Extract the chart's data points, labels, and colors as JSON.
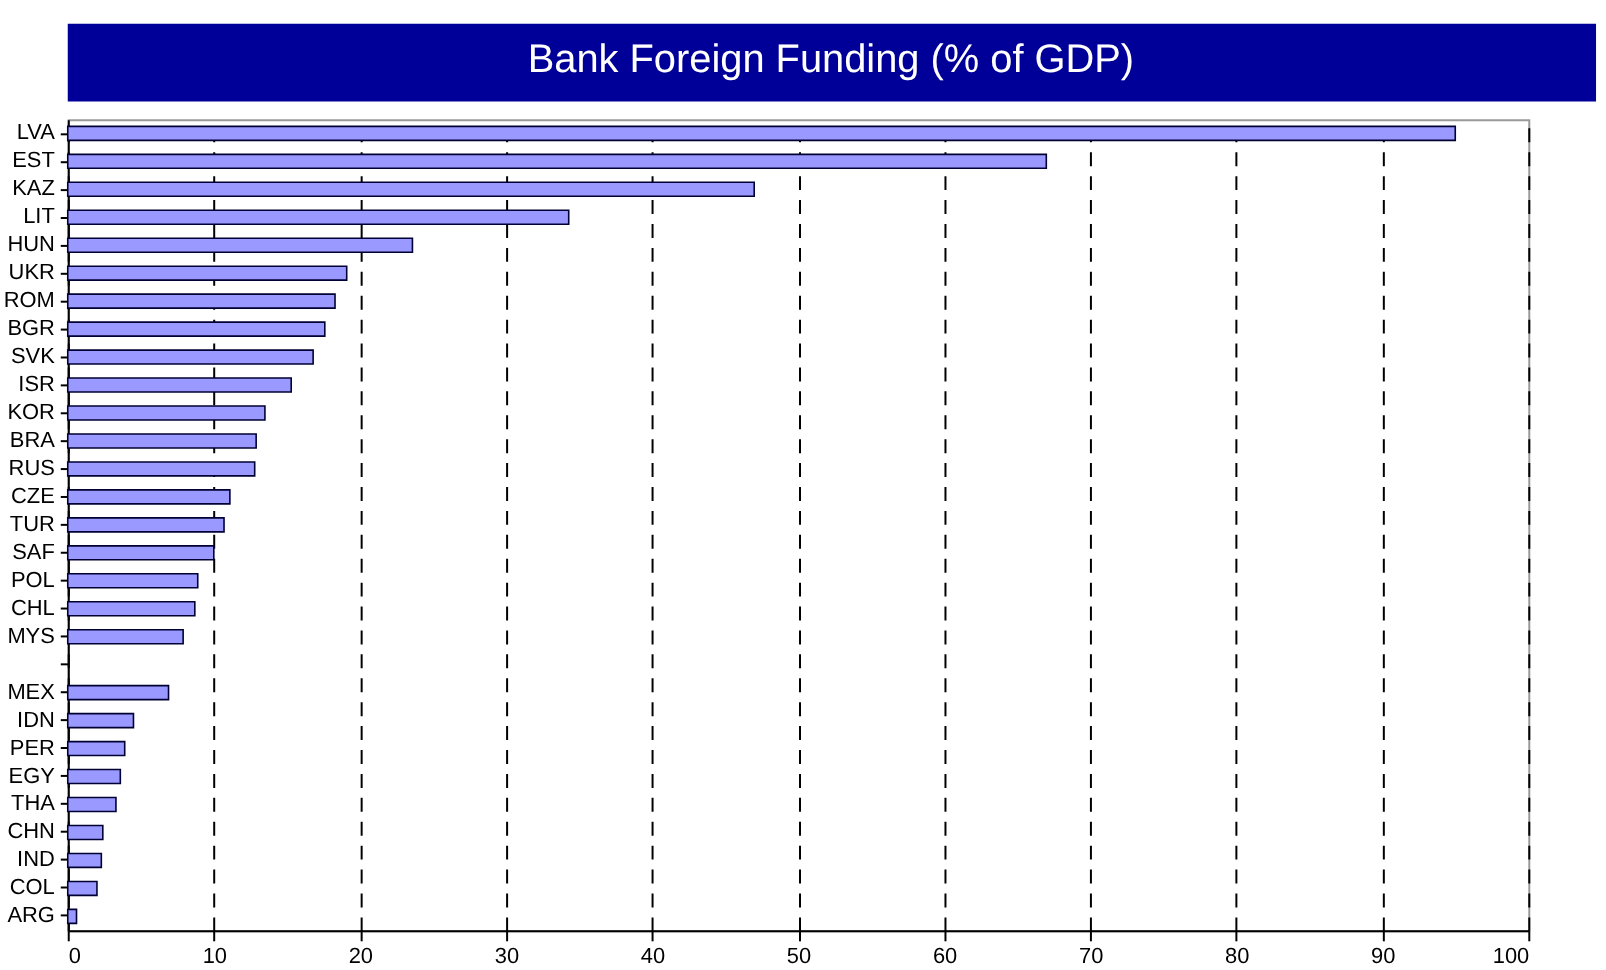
{
  "chart_data": {
    "type": "bar",
    "orientation": "horizontal",
    "title": "Bank Foreign Funding (% of GDP)",
    "categories": [
      "LVA",
      "EST",
      "KAZ",
      "LIT",
      "HUN",
      "UKR",
      "ROM",
      "BGR",
      "SVK",
      "ISR",
      "KOR",
      "BRA",
      "RUS",
      "CZE",
      "TUR",
      "SAF",
      "POL",
      "CHL",
      "MYS",
      null,
      "MEX",
      "IDN",
      "PER",
      "EGY",
      "THA",
      "CHN",
      "IND",
      "COL",
      "ARG"
    ],
    "values": [
      95,
      67,
      47,
      34.3,
      23.6,
      19.1,
      18.3,
      17.6,
      16.8,
      15.3,
      13.5,
      12.9,
      12.8,
      11.1,
      10.7,
      10.0,
      8.9,
      8.7,
      7.9,
      null,
      6.9,
      4.5,
      3.9,
      3.6,
      3.3,
      2.4,
      2.3,
      2.0,
      0.6
    ],
    "color": "#9999ff",
    "xlim": [
      0,
      100
    ],
    "xticks": [
      0,
      10,
      20,
      30,
      40,
      50,
      60,
      70,
      80,
      90,
      100
    ],
    "grid": "x"
  }
}
